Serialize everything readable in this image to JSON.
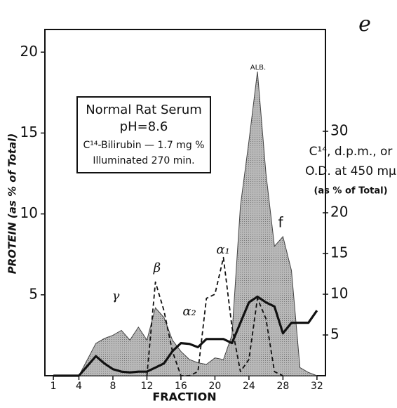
{
  "chart_data": {
    "type": "line",
    "panel_label": "e",
    "xlabel": "FRACTION",
    "ylabel": "PROTEIN (as % of Total)",
    "y2label": [
      "C¹⁴, d.p.m., or",
      "O.D. at 450 mμ",
      "(as % of Total)"
    ],
    "box_text": [
      "Normal Rat Serum",
      "pH=8.6",
      "C¹⁴-Bilirubin — 1.7 mg %",
      "Illuminated 270 min."
    ],
    "annotations": [
      "ALB.",
      "f",
      "γ",
      "β",
      "α₁",
      "α₂"
    ],
    "x": [
      1,
      2,
      3,
      4,
      5,
      6,
      7,
      8,
      9,
      10,
      11,
      12,
      13,
      14,
      15,
      16,
      17,
      18,
      19,
      20,
      21,
      22,
      23,
      24,
      25,
      26,
      27,
      28,
      29,
      30,
      31,
      32
    ],
    "series": [
      {
        "kind": "area",
        "color": "#a8a8a8",
        "values": [
          0,
          0,
          0,
          0,
          1.0,
          2.0,
          2.3,
          2.5,
          2.8,
          2.2,
          3.0,
          2.2,
          4.2,
          3.6,
          2.2,
          1.5,
          1.0,
          0.8,
          0.7,
          1.1,
          1.0,
          2.5,
          10.5,
          14.5,
          18.8,
          12.5,
          8.0,
          8.6,
          6.5,
          0.5,
          0.2,
          0
        ]
      },
      {
        "kind": "line",
        "dash": true,
        "axis": "y2",
        "color": "#111111",
        "values": [
          null,
          null,
          null,
          null,
          null,
          null,
          null,
          null,
          null,
          null,
          null,
          0,
          11.5,
          8.0,
          3.0,
          0,
          0,
          0.5,
          9.5,
          10.0,
          14.5,
          6.0,
          0.5,
          2.0,
          9.5,
          7.0,
          0.5,
          0,
          null,
          null,
          null,
          null
        ]
      },
      {
        "kind": "line",
        "dash": false,
        "axis": "y2",
        "color": "#111111",
        "values": [
          0,
          0,
          0,
          0,
          1.2,
          2.4,
          1.5,
          0.8,
          0.5,
          0.4,
          0.5,
          0.5,
          1.0,
          1.5,
          3.0,
          4.0,
          3.9,
          3.5,
          4.5,
          4.5,
          4.5,
          4.0,
          6.5,
          9.0,
          9.7,
          9.0,
          8.5,
          5.2,
          6.5,
          6.5,
          6.5,
          8.0
        ]
      }
    ],
    "xlim": [
      0,
      33
    ],
    "xticks": [
      1,
      4,
      8,
      12,
      16,
      20,
      24,
      28,
      32
    ],
    "ylim": [
      0,
      21.4
    ],
    "yticks": [
      5,
      10,
      15,
      20
    ],
    "y2lim": [
      0,
      42.5
    ],
    "y2ticks": [
      5,
      10,
      15,
      20,
      30
    ]
  }
}
